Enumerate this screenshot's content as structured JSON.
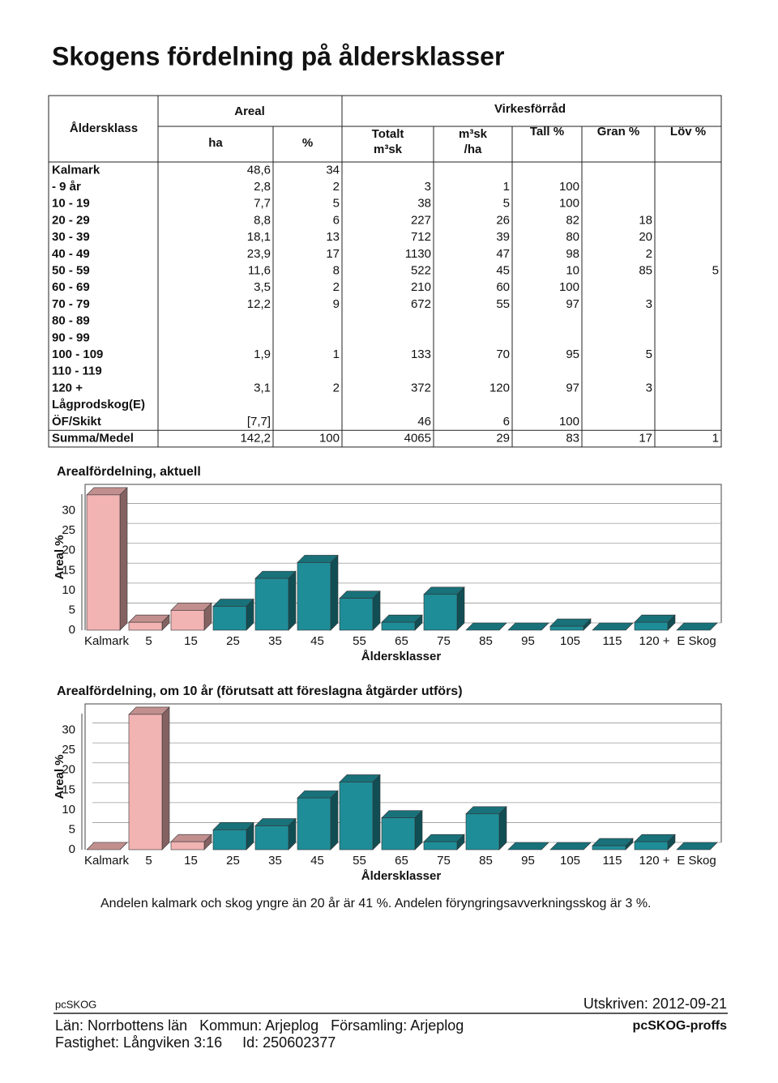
{
  "title": "Skogens fördelning på åldersklasser",
  "table": {
    "header": {
      "age_class": "Åldersklass",
      "areal": "Areal",
      "virke": "Virkesförråd",
      "columns": [
        [
          "ha"
        ],
        [
          "%"
        ],
        [
          "Totalt",
          "m³sk"
        ],
        [
          "m³sk",
          "/ha"
        ],
        [
          "Tall %"
        ],
        [
          "Gran %"
        ],
        [
          "Löv %"
        ]
      ]
    },
    "rows": [
      [
        "Kalmark",
        "48,6",
        "34",
        null,
        null,
        null,
        null,
        null
      ],
      [
        "- 9 år",
        "2,8",
        "2",
        "3",
        "1",
        "100",
        null,
        null
      ],
      [
        "10 - 19",
        "7,7",
        "5",
        "38",
        "5",
        "100",
        null,
        null
      ],
      [
        "20 - 29",
        "8,8",
        "6",
        "227",
        "26",
        "82",
        "18",
        null
      ],
      [
        "30 - 39",
        "18,1",
        "13",
        "712",
        "39",
        "80",
        "20",
        null
      ],
      [
        "40 - 49",
        "23,9",
        "17",
        "1130",
        "47",
        "98",
        "2",
        null
      ],
      [
        "50 - 59",
        "11,6",
        "8",
        "522",
        "45",
        "10",
        "85",
        "5"
      ],
      [
        "60 - 69",
        "3,5",
        "2",
        "210",
        "60",
        "100",
        null,
        null
      ],
      [
        "70 - 79",
        "12,2",
        "9",
        "672",
        "55",
        "97",
        "3",
        null
      ],
      [
        "80 - 89",
        null,
        null,
        null,
        null,
        null,
        null,
        null
      ],
      [
        "90 - 99",
        null,
        null,
        null,
        null,
        null,
        null,
        null
      ],
      [
        "100 - 109",
        "1,9",
        "1",
        "133",
        "70",
        "95",
        "5",
        null
      ],
      [
        "110 - 119",
        null,
        null,
        null,
        null,
        null,
        null,
        null
      ],
      [
        "120 +",
        "3,1",
        "2",
        "372",
        "120",
        "97",
        "3",
        null
      ],
      [
        "Lågprodskog(E)",
        null,
        null,
        null,
        null,
        null,
        null,
        null
      ],
      [
        "ÖF/Skikt",
        "[7,7]",
        null,
        "46",
        "6",
        "100",
        null,
        null
      ],
      [
        "Summa/Medel",
        "142,2",
        "100",
        "4065",
        "29",
        "83",
        "17",
        "1"
      ]
    ]
  },
  "chart_data": [
    {
      "type": "bar3d",
      "title": "Arealfördelning, aktuell",
      "y_label": "Areal %",
      "x_label": "Åldersklasser",
      "categories": [
        "Kalmark",
        "5",
        "15",
        "25",
        "35",
        "45",
        "55",
        "65",
        "75",
        "85",
        "95",
        "105",
        "115",
        "120 +",
        "E Skog"
      ],
      "values": [
        34,
        2,
        5,
        6,
        13,
        17,
        8,
        2,
        9,
        0,
        0,
        1,
        0,
        2,
        0
      ],
      "colors": [
        "#f2b3b3",
        "#f2b3b3",
        "#f2b3b3",
        "#1f8d98",
        "#1f8d98",
        "#1f8d98",
        "#1f8d98",
        "#1f8d98",
        "#1f8d98",
        "#1f8d98",
        "#1f8d98",
        "#1f8d98",
        "#1f8d98",
        "#1f8d98",
        "#1f8d98"
      ],
      "ylim": [
        0,
        35
      ],
      "yticks": [
        0,
        5,
        10,
        15,
        20,
        25,
        30
      ],
      "grid": true
    },
    {
      "type": "bar3d",
      "title": "Arealfördelning, om 10 år (förutsatt att föreslagna åtgärder utförs)",
      "y_label": "Areal %",
      "x_label": "Åldersklasser",
      "categories": [
        "Kalmark",
        "5",
        "15",
        "25",
        "35",
        "45",
        "55",
        "65",
        "75",
        "85",
        "95",
        "105",
        "115",
        "120 +",
        "E Skog"
      ],
      "values": [
        0,
        34,
        2,
        5,
        6,
        13,
        17,
        8,
        2,
        9,
        0,
        0,
        1,
        2,
        0
      ],
      "colors": [
        "#f2b3b3",
        "#f2b3b3",
        "#f2b3b3",
        "#1f8d98",
        "#1f8d98",
        "#1f8d98",
        "#1f8d98",
        "#1f8d98",
        "#1f8d98",
        "#1f8d98",
        "#1f8d98",
        "#1f8d98",
        "#1f8d98",
        "#1f8d98",
        "#1f8d98"
      ],
      "ylim": [
        0,
        35
      ],
      "yticks": [
        0,
        5,
        10,
        15,
        20,
        25,
        30
      ],
      "grid": true
    }
  ],
  "note": "Andelen kalmark och skog yngre än 20 år är 41 %. Andelen föryngringsavverkningsskog är 3 %.",
  "footer": {
    "program": "pcSKOG",
    "printed": "Utskriven: 2012-09-21",
    "location": "Län: Norrbottens län   Kommun: Arjeplog   Församling: Arjeplog",
    "property": "Fastighet: Långviken 3:16     Id: 250602377",
    "brand": "pcSKOG-proffs"
  }
}
